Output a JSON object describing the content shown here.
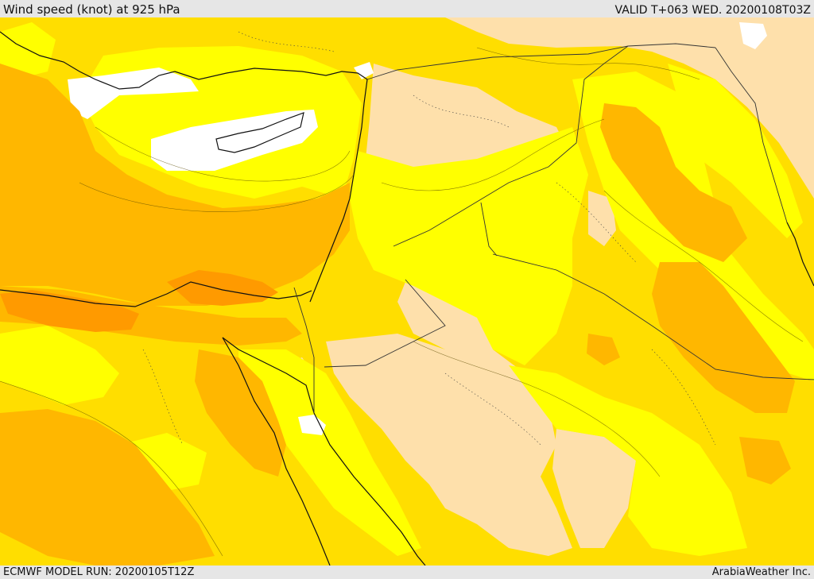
{
  "header": {
    "title": "Wind speed (knot) at 925 hPa",
    "valid": "VALID T+063 WED. 20200108T03Z"
  },
  "footer": {
    "model_run": "ECMWF MODEL RUN: 20200105T12Z",
    "credit": "ArabiaWeather Inc."
  },
  "colors": {
    "calm": "#ffffff",
    "light": "#fee0ab",
    "moderate": "#ffff00",
    "fresh": "#ffde00",
    "strong": "#ffb700",
    "very_strong": "#ff9a00",
    "coastline": "#111111",
    "border": "#333333"
  }
}
